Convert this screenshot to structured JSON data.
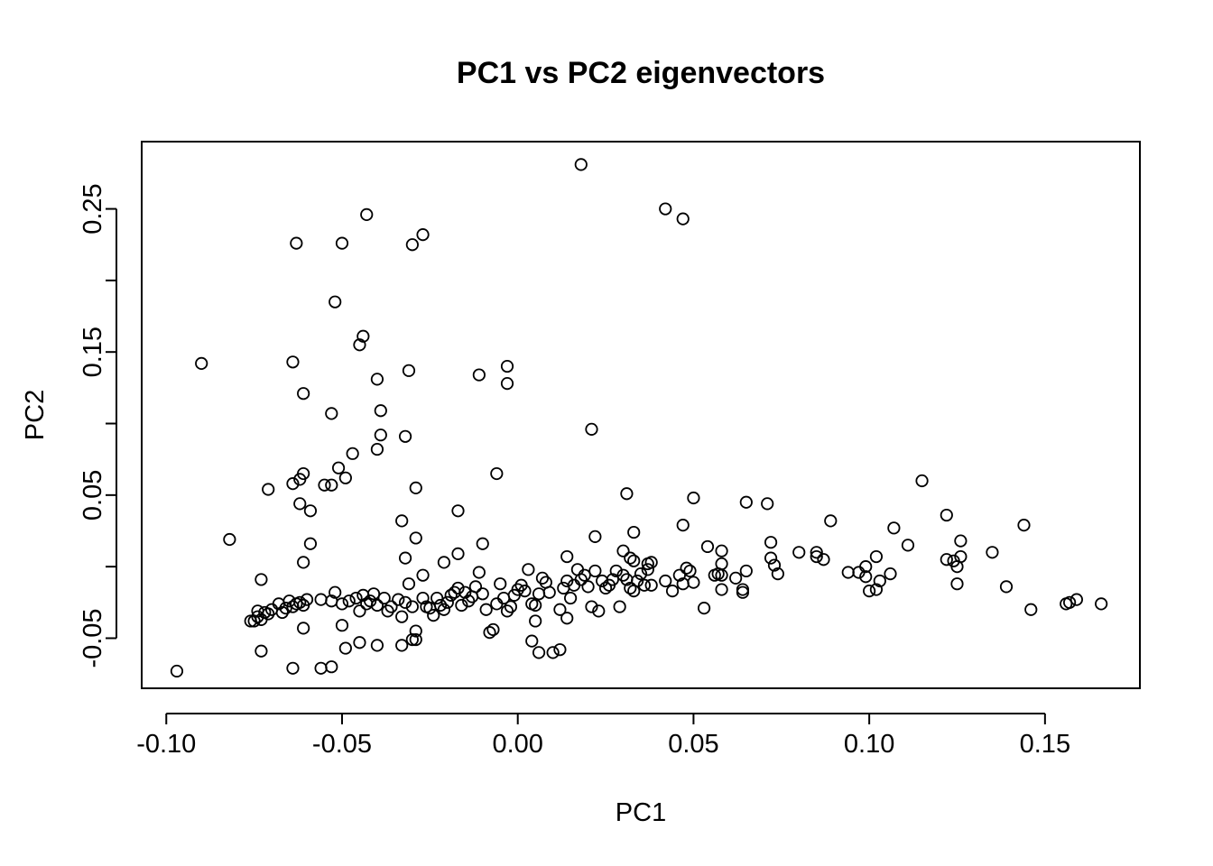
{
  "chart_data": {
    "type": "scatter",
    "title": "PC1 vs PC2 eigenvectors",
    "xlabel": "PC1",
    "ylabel": "PC2",
    "xlim": [
      -0.107,
      0.177
    ],
    "ylim": [
      -0.085,
      0.297
    ],
    "x_ticks": [
      -0.1,
      -0.05,
      0.0,
      0.05,
      0.1,
      0.15
    ],
    "x_tick_labels": [
      "-0.10",
      "-0.05",
      "0.00",
      "0.05",
      "0.10",
      "0.15"
    ],
    "y_ticks": [
      -0.05,
      0.0,
      0.05,
      0.1,
      0.15,
      0.2,
      0.25
    ],
    "y_tick_labels": [
      "-0.05",
      "",
      "0.05",
      "",
      "0.15",
      "",
      "0.25"
    ],
    "grid": false,
    "marker": "open-circle",
    "points": [
      [
        0.018,
        0.281
      ],
      [
        0.042,
        0.25
      ],
      [
        0.047,
        0.243
      ],
      [
        -0.043,
        0.246
      ],
      [
        -0.027,
        0.232
      ],
      [
        -0.063,
        0.226
      ],
      [
        -0.05,
        0.226
      ],
      [
        -0.03,
        0.225
      ],
      [
        -0.052,
        0.185
      ],
      [
        -0.044,
        0.161
      ],
      [
        -0.045,
        0.155
      ],
      [
        -0.09,
        0.142
      ],
      [
        -0.064,
        0.143
      ],
      [
        -0.031,
        0.137
      ],
      [
        -0.04,
        0.131
      ],
      [
        -0.011,
        0.134
      ],
      [
        -0.003,
        0.14
      ],
      [
        -0.003,
        0.128
      ],
      [
        -0.061,
        0.121
      ],
      [
        -0.053,
        0.107
      ],
      [
        -0.039,
        0.109
      ],
      [
        -0.039,
        0.092
      ],
      [
        -0.032,
        0.091
      ],
      [
        -0.04,
        0.082
      ],
      [
        -0.047,
        0.079
      ],
      [
        -0.051,
        0.069
      ],
      [
        -0.049,
        0.062
      ],
      [
        -0.061,
        0.065
      ],
      [
        -0.064,
        0.058
      ],
      [
        -0.062,
        0.061
      ],
      [
        -0.055,
        0.057
      ],
      [
        -0.053,
        0.057
      ],
      [
        -0.071,
        0.054
      ],
      [
        -0.029,
        0.055
      ],
      [
        -0.062,
        0.044
      ],
      [
        -0.059,
        0.039
      ],
      [
        -0.006,
        0.065
      ],
      [
        0.021,
        0.096
      ],
      [
        0.031,
        0.051
      ],
      [
        0.05,
        0.048
      ],
      [
        -0.033,
        0.032
      ],
      [
        -0.017,
        0.039
      ],
      [
        -0.082,
        0.019
      ],
      [
        -0.059,
        0.016
      ],
      [
        -0.029,
        0.02
      ],
      [
        -0.01,
        0.016
      ],
      [
        0.022,
        0.021
      ],
      [
        0.033,
        0.024
      ],
      [
        0.047,
        0.029
      ],
      [
        0.065,
        0.045
      ],
      [
        0.071,
        0.044
      ],
      [
        0.089,
        0.032
      ],
      [
        0.107,
        0.027
      ],
      [
        0.115,
        0.06
      ],
      [
        0.122,
        0.036
      ],
      [
        0.144,
        0.029
      ],
      [
        0.126,
        0.018
      ],
      [
        0.135,
        0.01
      ],
      [
        0.111,
        0.015
      ],
      [
        0.102,
        0.007
      ],
      [
        0.085,
        0.01
      ],
      [
        0.08,
        0.01
      ],
      [
        0.072,
        0.017
      ],
      [
        0.058,
        0.011
      ],
      [
        0.054,
        0.014
      ],
      [
        -0.061,
        0.003
      ],
      [
        -0.032,
        0.006
      ],
      [
        -0.021,
        0.003
      ],
      [
        -0.017,
        0.009
      ],
      [
        0.014,
        0.007
      ],
      [
        0.03,
        0.011
      ],
      [
        0.032,
        0.006
      ],
      [
        0.033,
        0.004
      ],
      [
        0.037,
        0.002
      ],
      [
        0.038,
        0.003
      ],
      [
        0.058,
        0.002
      ],
      [
        0.072,
        0.006
      ],
      [
        0.073,
        0.001
      ],
      [
        0.074,
        -0.005
      ],
      [
        0.065,
        -0.003
      ],
      [
        0.087,
        0.005
      ],
      [
        0.085,
        0.007
      ],
      [
        0.094,
        -0.004
      ],
      [
        0.097,
        -0.004
      ],
      [
        0.099,
        0.0
      ],
      [
        0.099,
        -0.007
      ],
      [
        0.102,
        -0.016
      ],
      [
        0.1,
        -0.017
      ],
      [
        0.103,
        -0.01
      ],
      [
        0.106,
        -0.005
      ],
      [
        0.122,
        0.005
      ],
      [
        0.124,
        0.004
      ],
      [
        0.125,
        0.0
      ],
      [
        0.126,
        0.007
      ],
      [
        0.125,
        -0.012
      ],
      [
        0.139,
        -0.014
      ],
      [
        0.146,
        -0.03
      ],
      [
        0.156,
        -0.026
      ],
      [
        0.157,
        -0.025
      ],
      [
        0.159,
        -0.023
      ],
      [
        0.166,
        -0.026
      ],
      [
        -0.097,
        -0.073
      ],
      [
        -0.073,
        -0.009
      ],
      [
        -0.076,
        -0.038
      ],
      [
        -0.075,
        -0.038
      ],
      [
        -0.074,
        -0.035
      ],
      [
        -0.074,
        -0.031
      ],
      [
        -0.073,
        -0.037
      ],
      [
        -0.072,
        -0.032
      ],
      [
        -0.071,
        -0.033
      ],
      [
        -0.07,
        -0.03
      ],
      [
        -0.068,
        -0.026
      ],
      [
        -0.067,
        -0.032
      ],
      [
        -0.066,
        -0.029
      ],
      [
        -0.065,
        -0.024
      ],
      [
        -0.064,
        -0.028
      ],
      [
        -0.063,
        -0.026
      ],
      [
        -0.062,
        -0.025
      ],
      [
        -0.061,
        -0.027
      ],
      [
        -0.06,
        -0.023
      ],
      [
        -0.061,
        -0.043
      ],
      [
        -0.064,
        -0.071
      ],
      [
        -0.073,
        -0.059
      ],
      [
        -0.056,
        -0.071
      ],
      [
        -0.053,
        -0.07
      ],
      [
        -0.05,
        -0.041
      ],
      [
        -0.049,
        -0.057
      ],
      [
        -0.045,
        -0.053
      ],
      [
        -0.04,
        -0.055
      ],
      [
        -0.056,
        -0.023
      ],
      [
        -0.053,
        -0.024
      ],
      [
        -0.052,
        -0.018
      ],
      [
        -0.05,
        -0.026
      ],
      [
        -0.048,
        -0.024
      ],
      [
        -0.046,
        -0.022
      ],
      [
        -0.045,
        -0.031
      ],
      [
        -0.044,
        -0.02
      ],
      [
        -0.043,
        -0.026
      ],
      [
        -0.042,
        -0.024
      ],
      [
        -0.041,
        -0.019
      ],
      [
        -0.04,
        -0.027
      ],
      [
        -0.038,
        -0.022
      ],
      [
        -0.037,
        -0.031
      ],
      [
        -0.036,
        -0.028
      ],
      [
        -0.034,
        -0.023
      ],
      [
        -0.033,
        -0.035
      ],
      [
        -0.032,
        -0.025
      ],
      [
        -0.031,
        -0.012
      ],
      [
        -0.03,
        -0.028
      ],
      [
        -0.029,
        -0.045
      ],
      [
        -0.03,
        -0.051
      ],
      [
        -0.029,
        -0.051
      ],
      [
        -0.033,
        -0.055
      ],
      [
        -0.027,
        -0.006
      ],
      [
        -0.027,
        -0.022
      ],
      [
        -0.026,
        -0.028
      ],
      [
        -0.025,
        -0.029
      ],
      [
        -0.024,
        -0.034
      ],
      [
        -0.023,
        -0.022
      ],
      [
        -0.022,
        -0.027
      ],
      [
        -0.021,
        -0.03
      ],
      [
        -0.02,
        -0.025
      ],
      [
        -0.019,
        -0.02
      ],
      [
        -0.018,
        -0.018
      ],
      [
        -0.017,
        -0.015
      ],
      [
        -0.016,
        -0.027
      ],
      [
        -0.015,
        -0.018
      ],
      [
        -0.014,
        -0.024
      ],
      [
        -0.013,
        -0.021
      ],
      [
        -0.012,
        -0.014
      ],
      [
        -0.011,
        -0.004
      ],
      [
        -0.01,
        -0.019
      ],
      [
        -0.009,
        -0.03
      ],
      [
        -0.008,
        -0.046
      ],
      [
        -0.007,
        -0.044
      ],
      [
        -0.006,
        -0.026
      ],
      [
        -0.005,
        -0.012
      ],
      [
        -0.004,
        -0.022
      ],
      [
        -0.003,
        -0.031
      ],
      [
        -0.002,
        -0.028
      ],
      [
        -0.001,
        -0.02
      ],
      [
        0.0,
        -0.016
      ],
      [
        0.001,
        -0.013
      ],
      [
        0.002,
        -0.017
      ],
      [
        0.003,
        -0.002
      ],
      [
        0.004,
        -0.026
      ],
      [
        0.005,
        -0.038
      ],
      [
        0.006,
        -0.06
      ],
      [
        0.004,
        -0.052
      ],
      [
        0.005,
        -0.027
      ],
      [
        0.006,
        -0.019
      ],
      [
        0.007,
        -0.008
      ],
      [
        0.008,
        -0.011
      ],
      [
        0.009,
        -0.018
      ],
      [
        0.01,
        -0.06
      ],
      [
        0.012,
        -0.058
      ],
      [
        0.012,
        -0.03
      ],
      [
        0.013,
        -0.015
      ],
      [
        0.014,
        -0.01
      ],
      [
        0.014,
        -0.036
      ],
      [
        0.015,
        -0.022
      ],
      [
        0.016,
        -0.013
      ],
      [
        0.017,
        -0.002
      ],
      [
        0.018,
        -0.009
      ],
      [
        0.019,
        -0.006
      ],
      [
        0.02,
        -0.014
      ],
      [
        0.021,
        -0.028
      ],
      [
        0.022,
        -0.003
      ],
      [
        0.023,
        -0.031
      ],
      [
        0.024,
        -0.01
      ],
      [
        0.025,
        -0.015
      ],
      [
        0.026,
        -0.013
      ],
      [
        0.027,
        -0.009
      ],
      [
        0.028,
        -0.003
      ],
      [
        0.029,
        -0.028
      ],
      [
        0.03,
        -0.006
      ],
      [
        0.031,
        -0.009
      ],
      [
        0.032,
        -0.015
      ],
      [
        0.033,
        -0.017
      ],
      [
        0.034,
        -0.01
      ],
      [
        0.035,
        -0.005
      ],
      [
        0.036,
        -0.013
      ],
      [
        0.037,
        -0.002
      ],
      [
        0.038,
        -0.013
      ],
      [
        0.042,
        -0.01
      ],
      [
        0.044,
        -0.017
      ],
      [
        0.046,
        -0.006
      ],
      [
        0.047,
        -0.012
      ],
      [
        0.048,
        -0.001
      ],
      [
        0.049,
        -0.003
      ],
      [
        0.05,
        -0.011
      ],
      [
        0.053,
        -0.029
      ],
      [
        0.056,
        -0.006
      ],
      [
        0.057,
        -0.005
      ],
      [
        0.058,
        -0.006
      ],
      [
        0.058,
        -0.016
      ],
      [
        0.062,
        -0.008
      ],
      [
        0.064,
        -0.018
      ],
      [
        0.064,
        -0.016
      ]
    ]
  }
}
